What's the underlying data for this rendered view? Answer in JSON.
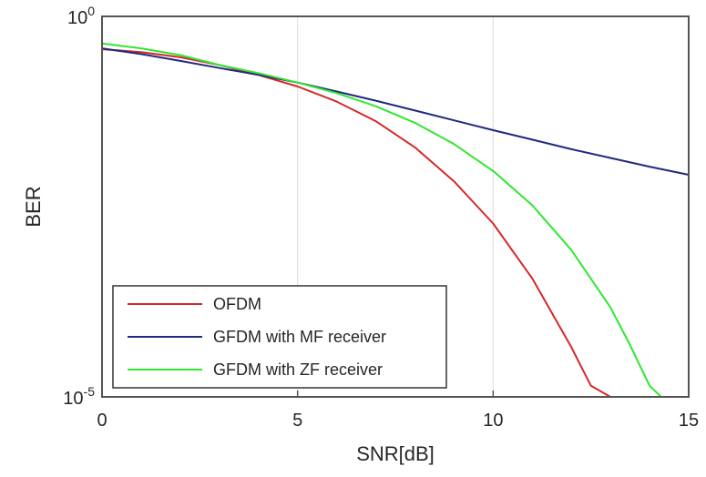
{
  "chart_data": {
    "type": "line",
    "xlabel": "SNR[dB]",
    "ylabel": "BER",
    "xlim": [
      0,
      15
    ],
    "ylim": [
      1e-05,
      1
    ],
    "yscale": "log",
    "x_ticks": [
      0,
      5,
      10,
      15
    ],
    "x_tick_labels": [
      "0",
      "5",
      "10",
      "15"
    ],
    "y_tick_labels": [
      {
        "value": 1,
        "base": "10",
        "exp": "0"
      },
      {
        "value": 1e-05,
        "base": "10",
        "exp": "-5"
      }
    ],
    "grid": "x-major",
    "legend_position": "bottom-left",
    "series": [
      {
        "name": "OFDM",
        "color": "#d62728",
        "x": [
          0,
          1,
          2,
          3,
          4,
          5,
          6,
          7,
          8,
          9,
          10,
          11,
          12,
          12.5,
          13
        ],
        "y": [
          0.37,
          0.34,
          0.29,
          0.23,
          0.17,
          0.12,
          0.076,
          0.042,
          0.019,
          0.0068,
          0.0019,
          0.00036,
          4.5e-05,
          1.4e-05,
          5e-06
        ]
      },
      {
        "name": "GFDM with MF receiver",
        "color": "#1f2a80",
        "x": [
          0,
          1,
          2,
          3,
          4,
          5,
          6,
          7,
          8,
          9,
          10,
          11,
          12,
          13,
          14,
          15
        ],
        "y": [
          0.38,
          0.32,
          0.26,
          0.21,
          0.17,
          0.135,
          0.103,
          0.078,
          0.058,
          0.043,
          0.032,
          0.024,
          0.018,
          0.0138,
          0.0106,
          0.0083
        ]
      },
      {
        "name": "GFDM with ZF receiver",
        "color": "#2ee82e",
        "x": [
          0,
          1,
          2,
          3,
          4,
          5,
          6,
          7,
          8,
          9,
          10,
          11,
          12,
          13,
          13.5,
          14,
          14.3
        ],
        "y": [
          0.44,
          0.38,
          0.31,
          0.23,
          0.18,
          0.135,
          0.098,
          0.066,
          0.04,
          0.021,
          0.0093,
          0.0033,
          0.00085,
          0.00015,
          4.8e-05,
          1.4e-05,
          5e-06
        ]
      }
    ]
  }
}
